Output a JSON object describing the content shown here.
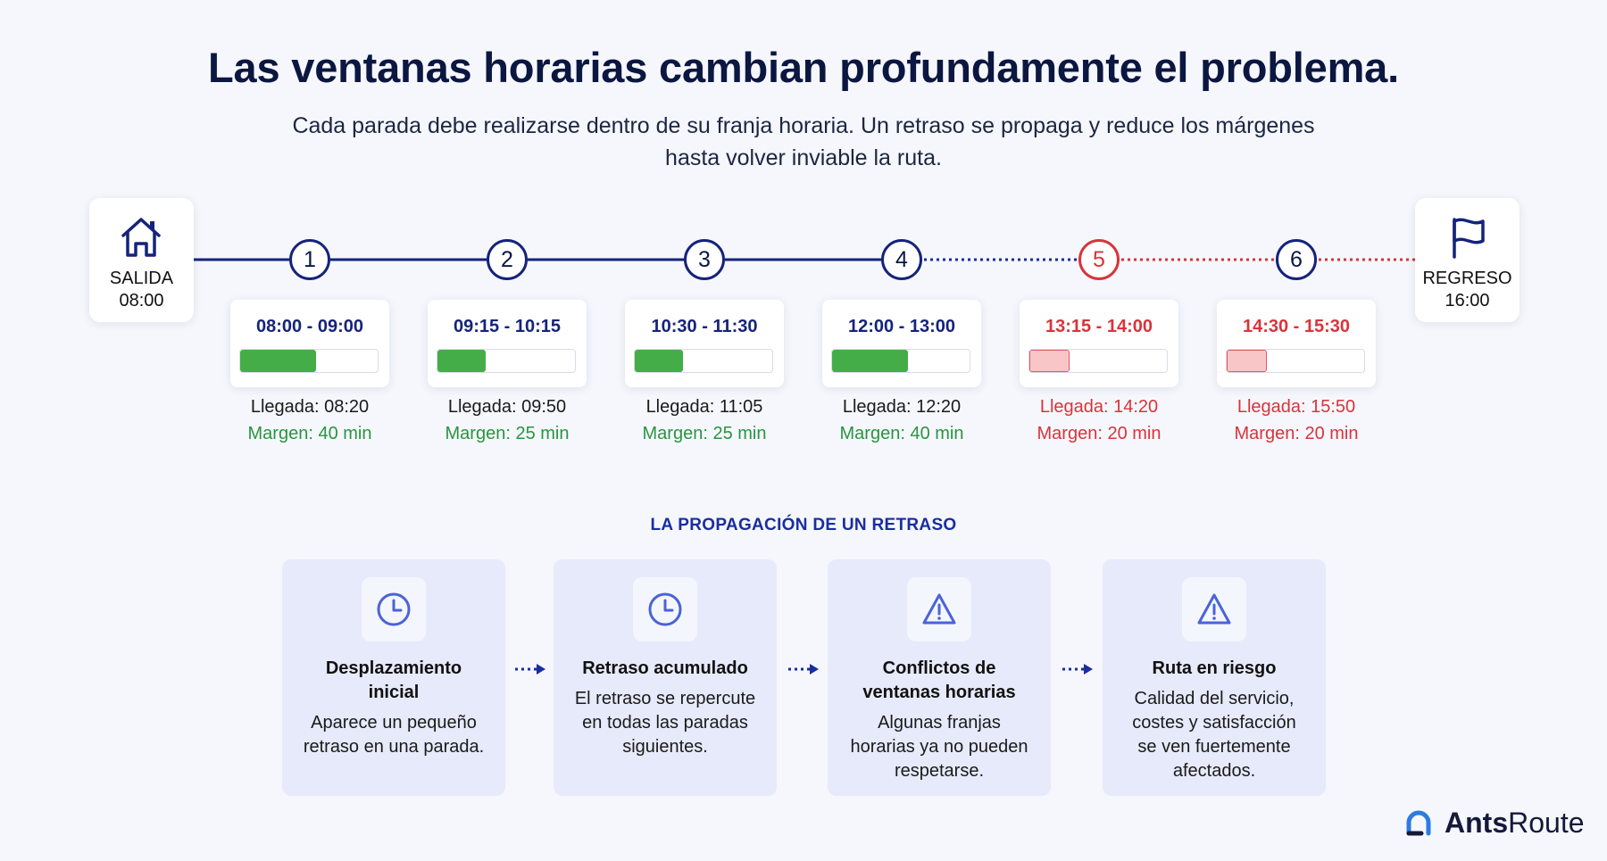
{
  "title": "Las ventanas horarias cambian profundamente el problema.",
  "subtitle_line1": "Cada parada debe realizarse dentro de su franja horaria. Un retraso se propaga y reduce los márgenes",
  "subtitle_line2": "hasta volver inviable la ruta.",
  "departure": {
    "label": "SALIDA",
    "time": "08:00",
    "icon": "home-icon"
  },
  "return": {
    "label": "REGRESO",
    "time": "16:00",
    "icon": "flag-icon"
  },
  "stops": [
    {
      "number": "1",
      "window": "08:00 - 09:00",
      "arrival": "Llegada: 08:20",
      "margin": "Margen: 40 min",
      "fill": 0.55,
      "status": "ok"
    },
    {
      "number": "2",
      "window": "09:15 - 10:15",
      "arrival": "Llegada: 09:50",
      "margin": "Margen: 25 min",
      "fill": 0.35,
      "status": "ok"
    },
    {
      "number": "3",
      "window": "10:30 - 11:30",
      "arrival": "Llegada: 11:05",
      "margin": "Margen: 25 min",
      "fill": 0.35,
      "status": "ok"
    },
    {
      "number": "4",
      "window": "12:00 - 13:00",
      "arrival": "Llegada: 12:20",
      "margin": "Margen: 40 min",
      "fill": 0.55,
      "status": "ok"
    },
    {
      "number": "5",
      "window": "13:15 - 14:00",
      "arrival": "Llegada: 14:20",
      "margin": "Margen: 20 min",
      "fill": 0.29,
      "status": "late"
    },
    {
      "number": "6",
      "window": "14:30 - 15:30",
      "arrival": "Llegada: 15:50",
      "margin": "Margen: 20 min",
      "fill": 0.29,
      "status": "late"
    }
  ],
  "colors": {
    "navy": "#15237a",
    "green": "#44ad48",
    "red": "#d8343a",
    "blue_dots": "#1a2da0"
  },
  "propagation": {
    "heading": "LA PROPAGACIÓN DE UN RETRASO",
    "steps": [
      {
        "icon": "clock-icon",
        "title_line1": "Desplazamiento",
        "title_line2": "inicial",
        "desc_line1": "Aparece un pequeño",
        "desc_line2": "retraso en una parada.",
        "desc_line3": "",
        "desc_line4": ""
      },
      {
        "icon": "clock-icon",
        "title_line1": "Retraso acumulado",
        "title_line2": "",
        "desc_line1": "El retraso se repercute",
        "desc_line2": "en todas las paradas",
        "desc_line3": "siguientes.",
        "desc_line4": ""
      },
      {
        "icon": "warning-icon",
        "title_line1": "Conflictos de",
        "title_line2": "ventanas horarias",
        "desc_line1": "Algunas franjas",
        "desc_line2": "horarias ya no pueden",
        "desc_line3": "respetarse.",
        "desc_line4": ""
      },
      {
        "icon": "warning-icon",
        "title_line1": "Ruta en riesgo",
        "title_line2": "",
        "desc_line1": "Calidad del servicio,",
        "desc_line2": "costes y satisfacción",
        "desc_line3": "se ven fuertemente",
        "desc_line4": "afectados."
      }
    ]
  },
  "brand": {
    "name_bold": "Ants",
    "name_rest": "Route"
  }
}
